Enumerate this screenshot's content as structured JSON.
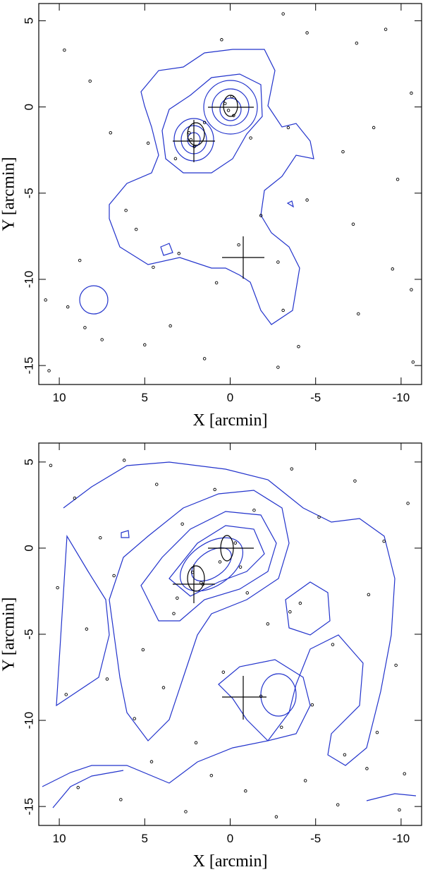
{
  "chart_data": [
    {
      "type": "scatter",
      "xlabel": "X [arcmin]",
      "ylabel": "Y [arcmin]",
      "xlim": [
        11.2,
        -11.2
      ],
      "ylim": [
        -16.1,
        6.0
      ],
      "xticks": [
        10,
        5,
        0,
        -5,
        -10
      ],
      "yticks": [
        5,
        0,
        -5,
        -10,
        -15
      ],
      "color": "#000000",
      "x": [
        9.7,
        8.2,
        7.0,
        6.1,
        8.8,
        10.8,
        10.6,
        7.5,
        3.5,
        0.5,
        -3.1,
        -4.5,
        -7.4,
        -9.1,
        -10.6,
        -8.4,
        -6.6,
        -9.8,
        -7.2,
        -9.5,
        -10.6,
        -7.5,
        -10.7,
        -4.0,
        -2.8,
        1.5,
        5.0,
        2.3,
        2.1,
        2.4,
        0.1,
        -0.2,
        0.3,
        -0.1,
        1.5,
        -1.2,
        3.2,
        4.8,
        5.5,
        3.0,
        -1.8,
        -0.5,
        -2.8,
        -3.1,
        0.8,
        4.5,
        -4.5,
        -3.4,
        9.5,
        8.5
      ],
      "y": [
        3.3,
        1.5,
        -1.5,
        -6.0,
        -8.9,
        -11.2,
        -15.3,
        -13.5,
        -12.7,
        3.9,
        5.4,
        4.3,
        3.7,
        4.5,
        0.8,
        -1.2,
        -2.6,
        -4.2,
        -6.8,
        -9.4,
        -10.6,
        -12.0,
        -14.8,
        -13.9,
        -15.1,
        -14.6,
        -13.8,
        -1.9,
        -2.3,
        -1.5,
        -0.2,
        -0.5,
        0.2,
        0.6,
        -0.9,
        -1.8,
        -3.0,
        -2.1,
        -7.1,
        -8.5,
        -6.3,
        -8.0,
        -9.0,
        -11.8,
        -10.2,
        -9.3,
        -5.4,
        -1.2,
        -11.6,
        -12.8
      ]
    },
    {
      "type": "scatter",
      "xlabel": "X [arcmin]",
      "ylabel": "Y [arcmin]",
      "xlim": [
        11.2,
        -11.2
      ],
      "ylim": [
        -16.1,
        6.1
      ],
      "xticks": [
        10,
        5,
        0,
        -5,
        -10
      ],
      "yticks": [
        5,
        0,
        -5,
        -10,
        -15
      ],
      "color": "#000000",
      "x": [
        10.5,
        9.1,
        7.6,
        6.2,
        4.3,
        2.8,
        0.9,
        -1.4,
        -3.6,
        -5.2,
        -7.3,
        -9.0,
        -10.4,
        10.1,
        8.4,
        6.8,
        5.1,
        3.3,
        1.6,
        -0.6,
        -2.2,
        -4.1,
        -6.0,
        -8.1,
        -9.7,
        9.6,
        7.2,
        5.6,
        3.9,
        2.0,
        0.4,
        -1.8,
        -3.0,
        -4.8,
        -6.7,
        -8.6,
        -10.2,
        8.9,
        6.4,
        4.6,
        2.6,
        1.1,
        -0.9,
        -2.7,
        -4.4,
        -6.3,
        -8.0,
        -9.9,
        2.2,
        1.7,
        0.6,
        -0.3,
        -1.0,
        3.1,
        -3.5
      ],
      "y": [
        4.8,
        2.9,
        0.6,
        5.1,
        3.7,
        1.4,
        3.4,
        2.2,
        4.6,
        1.8,
        3.9,
        0.4,
        2.6,
        -2.3,
        -4.7,
        -1.6,
        -5.9,
        -3.8,
        -2.1,
        -1.1,
        -4.4,
        -3.2,
        -5.6,
        -2.7,
        -6.8,
        -8.5,
        -7.6,
        -9.9,
        -8.1,
        -11.3,
        -7.2,
        -8.6,
        -10.4,
        -9.1,
        -12.0,
        -10.7,
        -13.1,
        -13.9,
        -14.6,
        -12.4,
        -15.3,
        -13.2,
        -14.1,
        -15.6,
        -13.5,
        -14.9,
        -12.8,
        -15.2,
        -1.4,
        -2.0,
        -0.8,
        0.3,
        -2.6,
        -2.9,
        -3.7
      ]
    }
  ]
}
